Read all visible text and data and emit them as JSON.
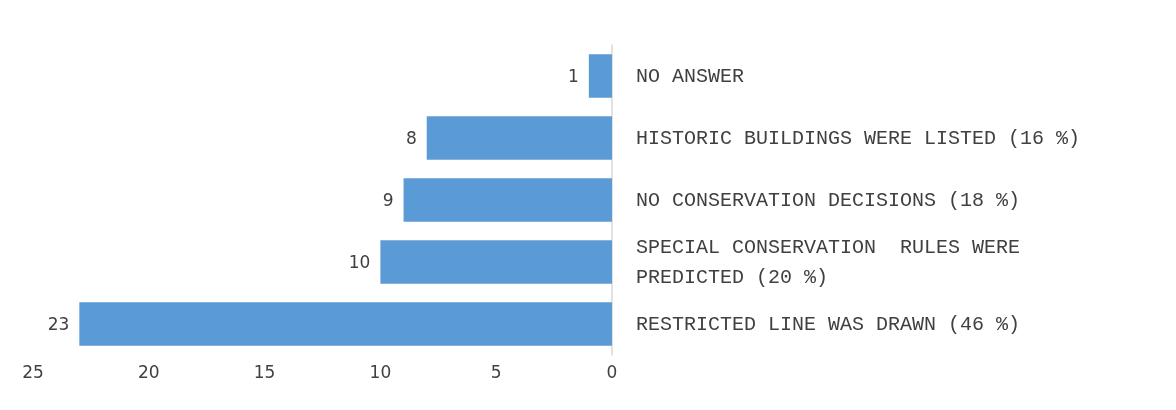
{
  "chart_data": {
    "type": "bar",
    "orientation": "horizontal",
    "categories": [
      "NO ANSWER",
      "HISTORIC BUILDINGS WERE LISTED (16 %)",
      "NO CONSERVATION DECISIONS (18 %)",
      "SPECIAL CONSERVATION  RULES WERE PREDICTED (20 %)",
      "RESTRICTED LINE WAS DRAWN (46 %)"
    ],
    "values": [
      1,
      8,
      9,
      10,
      23
    ],
    "color": "#5b9bd5",
    "xlim": [
      25,
      0
    ],
    "xticks": [
      25,
      20,
      15,
      10,
      5,
      0
    ],
    "data_labels": true,
    "grid": false
  }
}
